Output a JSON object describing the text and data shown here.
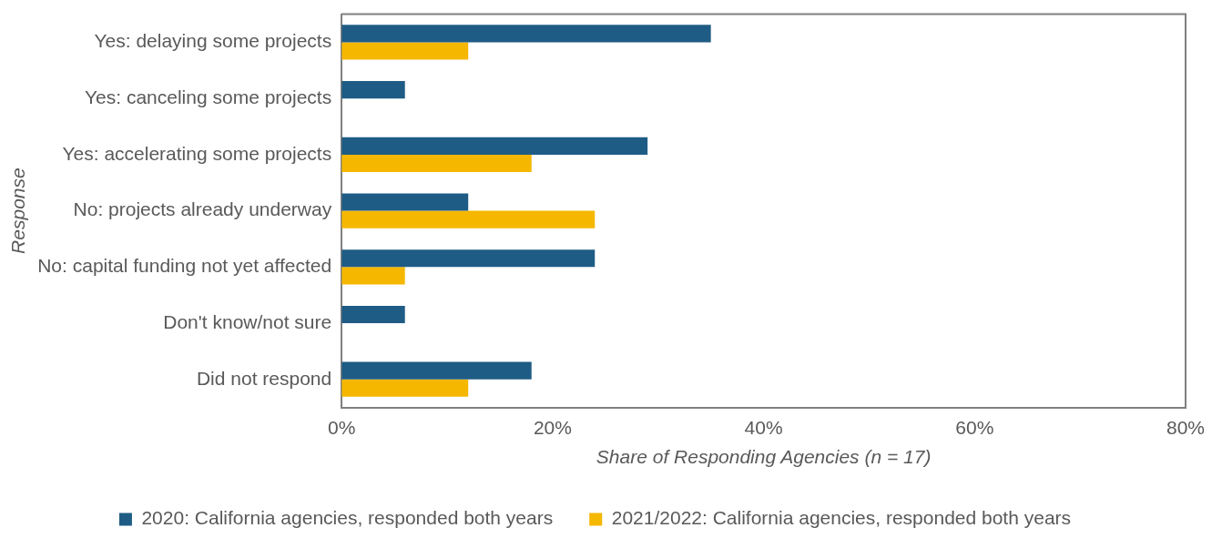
{
  "chart_data": {
    "type": "bar",
    "orientation": "horizontal",
    "xlabel": "Share of Responding Agencies (n = 17)",
    "ylabel": "Response",
    "categories": [
      "Yes: delaying some projects",
      "Yes: canceling some projects",
      "Yes: accelerating some projects",
      "No: projects already underway",
      "No: capital funding not yet affected",
      "Don't know/not sure",
      "Did not respond"
    ],
    "series": [
      {
        "name": "2020: California agencies, responded both years",
        "color": "#1f5c85",
        "values": [
          35,
          6,
          29,
          12,
          24,
          6,
          18
        ]
      },
      {
        "name": "2021/2022: California agencies, responded both years",
        "color": "#f5b700",
        "values": [
          12,
          0,
          18,
          24,
          6,
          0,
          12
        ]
      }
    ],
    "xlim": [
      0,
      80
    ],
    "xticks": [
      {
        "value": 0,
        "label": "0%"
      },
      {
        "value": 20,
        "label": "20%"
      },
      {
        "value": 40,
        "label": "40%"
      },
      {
        "value": 60,
        "label": "60%"
      },
      {
        "value": 80,
        "label": "80%"
      }
    ],
    "grid": false,
    "legend": "bottom"
  }
}
